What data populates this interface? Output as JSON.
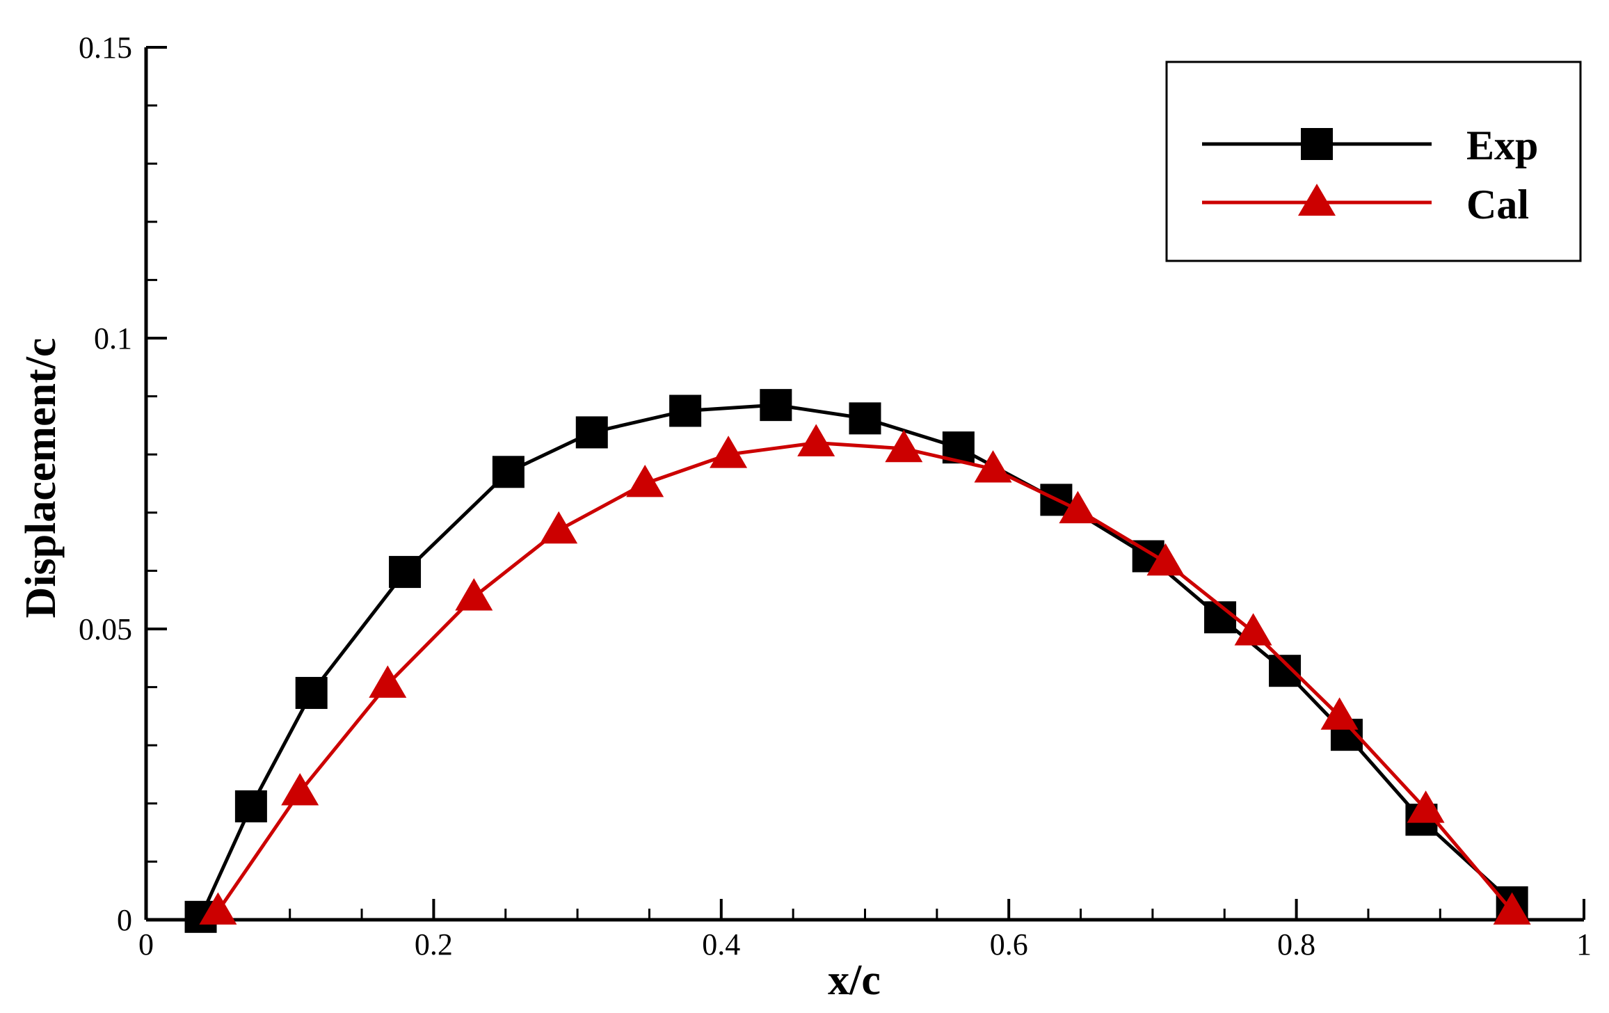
{
  "chart_data": {
    "type": "line",
    "title": "",
    "xlabel": "x/c",
    "ylabel": "Displacement/c",
    "xlim": [
      0,
      1
    ],
    "ylim": [
      0,
      0.15
    ],
    "x_major_ticks": [
      0,
      0.2,
      0.4,
      0.6,
      0.8,
      1
    ],
    "x_tick_labels": [
      "0",
      "0.2",
      "0.4",
      "0.6",
      "0.8",
      "1"
    ],
    "y_major_ticks": [
      0,
      0.05,
      0.1,
      0.15
    ],
    "y_tick_labels": [
      "0",
      "0.05",
      "0.1",
      "0.15"
    ],
    "x_minor_step": 0.05,
    "y_minor_step": 0.01,
    "grid": false,
    "legend_position": "top-right",
    "series": [
      {
        "name": "Exp",
        "color": "#000000",
        "marker": "square",
        "x": [
          0.038,
          0.073,
          0.115,
          0.18,
          0.252,
          0.31,
          0.375,
          0.438,
          0.5,
          0.565,
          0.633,
          0.697,
          0.747,
          0.792,
          0.835,
          0.887,
          0.95
        ],
        "y": [
          0.0005,
          0.0195,
          0.039,
          0.0598,
          0.077,
          0.0838,
          0.0875,
          0.0885,
          0.0862,
          0.0812,
          0.0722,
          0.0625,
          0.052,
          0.0428,
          0.0318,
          0.0172,
          0.003
        ]
      },
      {
        "name": "Cal",
        "color": "#cc0000",
        "marker": "triangle",
        "x": [
          0.05,
          0.107,
          0.168,
          0.228,
          0.287,
          0.347,
          0.405,
          0.466,
          0.527,
          0.589,
          0.648,
          0.709,
          0.77,
          0.83,
          0.89,
          0.95
        ],
        "y": [
          0.0015,
          0.022,
          0.0405,
          0.0555,
          0.067,
          0.075,
          0.08,
          0.082,
          0.081,
          0.0775,
          0.0705,
          0.0615,
          0.0495,
          0.035,
          0.019,
          0.0015
        ]
      }
    ]
  }
}
